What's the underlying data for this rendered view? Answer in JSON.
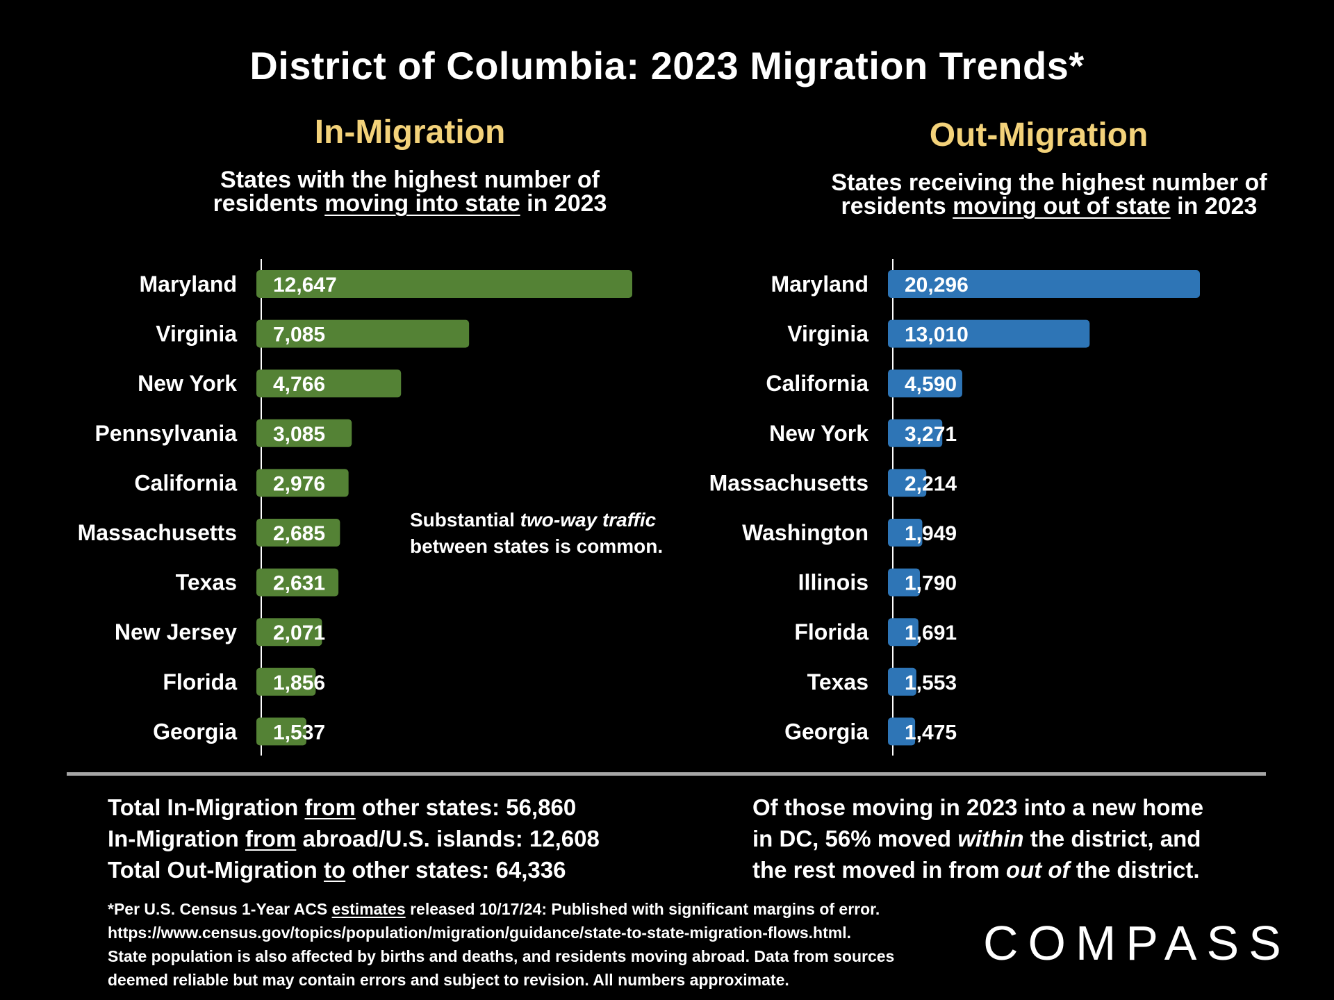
{
  "title": "District of Columbia:  2023 Migration Trends*",
  "in_section": {
    "title": "In-Migration",
    "subtitle_line1": "States with the highest number of",
    "subtitle_pre": "residents ",
    "subtitle_underlined": "moving into state",
    "subtitle_post": " in 2023"
  },
  "out_section": {
    "title": "Out-Migration",
    "subtitle_line1": "States receiving the highest number of",
    "subtitle_pre": "residents ",
    "subtitle_underlined": "moving out of state",
    "subtitle_post": " in 2023"
  },
  "annotation": {
    "line1_pre": "Substantial ",
    "line1_italic": "two-way traffic",
    "line2": "between states is common."
  },
  "colors": {
    "in_bar": "#548235",
    "out_bar": "#2e75b6",
    "accent": "#f3d27a"
  },
  "chart_data": [
    {
      "type": "bar",
      "orientation": "horizontal",
      "title": "In-Migration",
      "categories": [
        "Maryland",
        "Virginia",
        "New York",
        "Pennsylvania",
        "California",
        "Massachusetts",
        "Texas",
        "New Jersey",
        "Florida",
        "Georgia"
      ],
      "values": [
        12647,
        7085,
        4766,
        3085,
        2976,
        2685,
        2631,
        2071,
        1856,
        1537
      ],
      "labels": [
        "12,647",
        "7,085",
        "4,766",
        "3,085",
        "2,976",
        "2,685",
        "2,631",
        "2,071",
        "1,856",
        "1,537"
      ],
      "xlim": [
        0,
        14000
      ]
    },
    {
      "type": "bar",
      "orientation": "horizontal",
      "title": "Out-Migration",
      "categories": [
        "Maryland",
        "Virginia",
        "California",
        "New York",
        "Massachusetts",
        "Washington",
        "Illinois",
        "Florida",
        "Texas",
        "Georgia"
      ],
      "values": [
        20296,
        13010,
        4590,
        3271,
        2214,
        1949,
        1790,
        1691,
        1553,
        1475
      ],
      "labels": [
        "20,296",
        "13,010",
        "4,590",
        "3,271",
        "2,214",
        "1,949",
        "1,790",
        "1,691",
        "1,553",
        "1,475"
      ],
      "xlim": [
        0,
        22000
      ]
    }
  ],
  "totals": {
    "line1_pre": "Total In-Migration ",
    "line1_u": "from",
    "line1_post": " other states: 56,860",
    "line2_pre": "In-Migration ",
    "line2_u": "from",
    "line2_post": " abroad/U.S. islands: 12,608",
    "line3_pre": "Total Out-Migration ",
    "line3_u": "to",
    "line3_post": " other states: 64,336"
  },
  "note": {
    "line1": "Of those moving in 2023 into a new home",
    "line2_pre": "in DC, 56% moved ",
    "line2_italic": "within",
    "line2_post": " the district, and",
    "line3_pre": "the rest moved in from ",
    "line3_italic": "out of",
    "line3_post": " the district."
  },
  "footnote": {
    "line1_pre": "*Per U.S. Census 1-Year ACS ",
    "line1_u": "estimates",
    "line1_post": " released 10/17/24: Published with significant margins of error.",
    "line2": "https://www.census.gov/topics/population/migration/guidance/state-to-state-migration-flows.html.",
    "line3": "State population is also affected by births and deaths, and residents moving abroad. Data from sources",
    "line4": "deemed reliable but may contain errors and subject to revision. All numbers approximate."
  },
  "logo": "COMPASS"
}
